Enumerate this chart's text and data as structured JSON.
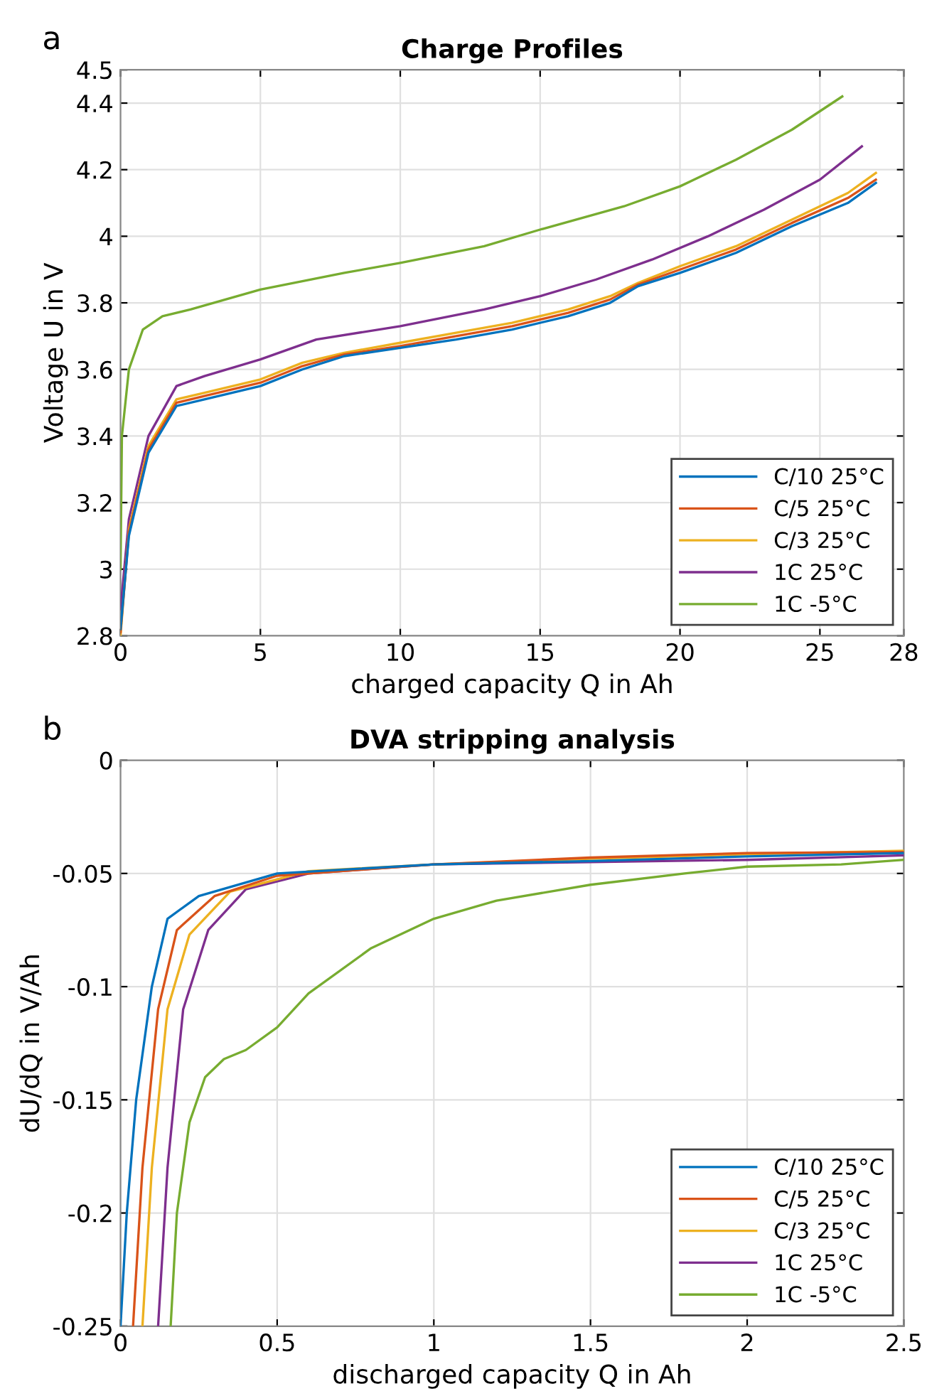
{
  "chart_data": [
    {
      "type": "line",
      "title": "Charge Profiles",
      "xlabel": "charged capacity Q in Ah",
      "ylabel": "Voltage U in V",
      "annotations": [
        "a"
      ],
      "xlim": [
        0,
        28
      ],
      "xticks": [
        0,
        5,
        10,
        15,
        20,
        25,
        28
      ],
      "ylim": [
        2.8,
        4.5
      ],
      "yticks": [
        2.8,
        3,
        3.2,
        3.4,
        3.6,
        3.8,
        4,
        4.2,
        4.4,
        4.5
      ],
      "grid": true,
      "legend": "bottom right",
      "line_style": "solid",
      "marker": "none",
      "series": [
        {
          "name": "C/10 25°C",
          "color": "#0072bd",
          "x": [
            0,
            0.3,
            1,
            2,
            3,
            5,
            6.5,
            8,
            10,
            12,
            14,
            16,
            17.5,
            18.5,
            20,
            22,
            24,
            26,
            27
          ],
          "values": [
            2.82,
            3.1,
            3.35,
            3.49,
            3.51,
            3.55,
            3.6,
            3.64,
            3.665,
            3.69,
            3.72,
            3.76,
            3.8,
            3.85,
            3.89,
            3.95,
            4.03,
            4.1,
            4.16
          ]
        },
        {
          "name": "C/5 25°C",
          "color": "#d95319",
          "x": [
            0,
            0.3,
            1,
            2,
            3,
            5,
            6.5,
            8,
            10,
            12,
            14,
            16,
            17.5,
            18.5,
            20,
            22,
            24,
            26,
            27
          ],
          "values": [
            2.81,
            3.11,
            3.36,
            3.5,
            3.52,
            3.56,
            3.61,
            3.645,
            3.67,
            3.7,
            3.73,
            3.77,
            3.81,
            3.855,
            3.9,
            3.96,
            4.04,
            4.115,
            4.17
          ]
        },
        {
          "name": "C/3 25°C",
          "color": "#edb120",
          "x": [
            0,
            0.3,
            1,
            2,
            3,
            5,
            6.5,
            8,
            10,
            12,
            14,
            16,
            17.5,
            18.5,
            20,
            22,
            24,
            26,
            27
          ],
          "values": [
            2.8,
            3.12,
            3.37,
            3.51,
            3.53,
            3.57,
            3.62,
            3.65,
            3.68,
            3.71,
            3.74,
            3.78,
            3.82,
            3.86,
            3.91,
            3.97,
            4.05,
            4.13,
            4.19
          ]
        },
        {
          "name": "1C 25°C",
          "color": "#7e2f8e",
          "x": [
            0,
            0.3,
            1,
            2,
            3,
            5,
            7,
            10,
            13,
            15,
            17,
            19,
            21,
            23,
            25,
            26.5
          ],
          "values": [
            2.88,
            3.15,
            3.4,
            3.55,
            3.58,
            3.63,
            3.69,
            3.73,
            3.78,
            3.82,
            3.87,
            3.93,
            4.0,
            4.08,
            4.17,
            4.27
          ]
        },
        {
          "name": "1C -5°C",
          "color": "#77ac30",
          "x": [
            0,
            0.05,
            0.3,
            0.8,
            1.5,
            2.5,
            5,
            8,
            10,
            13,
            15,
            18,
            20,
            22,
            24,
            25.8
          ],
          "values": [
            3.0,
            3.4,
            3.6,
            3.72,
            3.76,
            3.78,
            3.84,
            3.89,
            3.92,
            3.97,
            4.02,
            4.09,
            4.15,
            4.23,
            4.32,
            4.42
          ]
        }
      ]
    },
    {
      "type": "line",
      "title": "DVA stripping analysis",
      "xlabel": "discharged capacity Q in Ah",
      "ylabel": "dU/dQ in V/Ah",
      "annotations": [
        "b"
      ],
      "xlim": [
        0,
        2.5
      ],
      "xticks": [
        0,
        0.5,
        1,
        1.5,
        2,
        2.5
      ],
      "ylim": [
        -0.25,
        0
      ],
      "yticks": [
        -0.25,
        -0.2,
        -0.15,
        -0.1,
        -0.05,
        0
      ],
      "grid": true,
      "legend": "bottom right",
      "line_style": "solid",
      "marker": "none",
      "series": [
        {
          "name": "C/10 25°C",
          "color": "#0072bd",
          "x": [
            0,
            0.02,
            0.05,
            0.1,
            0.15,
            0.25,
            0.5,
            1,
            1.5,
            2,
            2.5
          ],
          "values": [
            -0.25,
            -0.2,
            -0.15,
            -0.1,
            -0.07,
            -0.06,
            -0.05,
            -0.046,
            -0.0445,
            -0.0425,
            -0.041
          ]
        },
        {
          "name": "C/5 25°C",
          "color": "#d95319",
          "x": [
            0.04,
            0.07,
            0.12,
            0.18,
            0.3,
            0.5,
            1,
            1.5,
            2,
            2.5
          ],
          "values": [
            -0.25,
            -0.18,
            -0.11,
            -0.075,
            -0.06,
            -0.051,
            -0.046,
            -0.043,
            -0.041,
            -0.0405
          ]
        },
        {
          "name": "C/3 25°C",
          "color": "#edb120",
          "x": [
            0.07,
            0.1,
            0.15,
            0.22,
            0.35,
            0.6,
            1,
            1.5,
            2,
            2.5
          ],
          "values": [
            -0.25,
            -0.18,
            -0.11,
            -0.077,
            -0.058,
            -0.049,
            -0.046,
            -0.0435,
            -0.0415,
            -0.04
          ]
        },
        {
          "name": "1C 25°C",
          "color": "#7e2f8e",
          "x": [
            0.12,
            0.15,
            0.2,
            0.28,
            0.4,
            0.6,
            0.8,
            1,
            1.5,
            2,
            2.5
          ],
          "values": [
            -0.25,
            -0.18,
            -0.11,
            -0.075,
            -0.057,
            -0.05,
            -0.048,
            -0.046,
            -0.045,
            -0.044,
            -0.042
          ]
        },
        {
          "name": "1C -5°C",
          "color": "#77ac30",
          "x": [
            0.16,
            0.18,
            0.22,
            0.27,
            0.33,
            0.4,
            0.5,
            0.6,
            0.8,
            1,
            1.2,
            1.5,
            1.8,
            2,
            2.3,
            2.5
          ],
          "values": [
            -0.25,
            -0.2,
            -0.16,
            -0.14,
            -0.132,
            -0.128,
            -0.118,
            -0.103,
            -0.083,
            -0.07,
            -0.062,
            -0.055,
            -0.05,
            -0.047,
            -0.046,
            -0.044
          ]
        }
      ]
    }
  ]
}
